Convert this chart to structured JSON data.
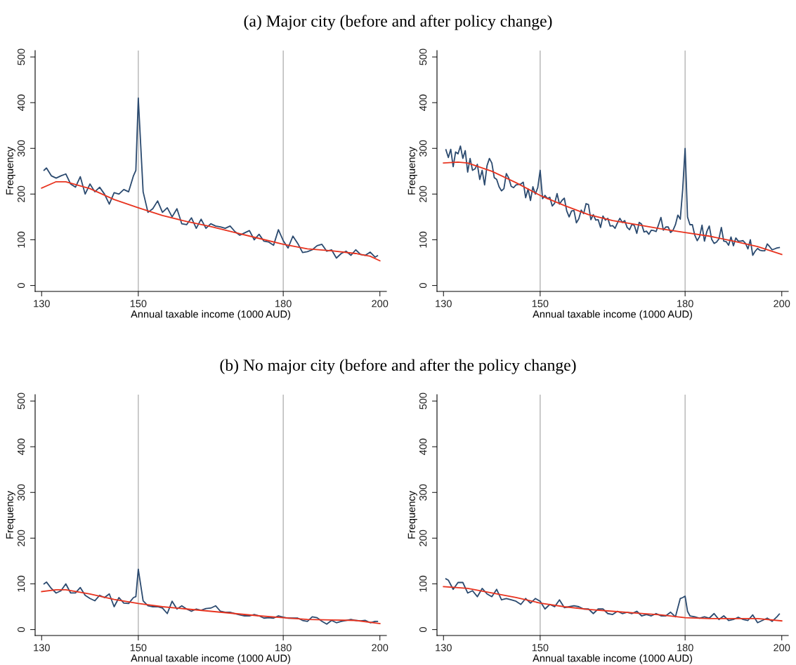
{
  "chart_data": [
    {
      "type": "line",
      "title": "(a) Major city (before and after policy change)",
      "xlabel": "Annual taxable income (1000 AUD)",
      "ylabel": "Frequency",
      "xlim": [
        128.65,
        201.35
      ],
      "ylim": [
        -13,
        514
      ],
      "xticks": [
        130,
        150,
        180,
        200
      ],
      "yticks": [
        0,
        100,
        200,
        300,
        400,
        500
      ],
      "grid": false,
      "marker": "none",
      "line_style": "solid",
      "ref_lines": [
        {
          "axis": "x",
          "value": 150,
          "color": "#b4b4b4"
        },
        {
          "axis": "x",
          "value": 180,
          "color": "#b4b4b4"
        }
      ],
      "series": [
        {
          "color": "#2b4a6f",
          "x": [
            130.5,
            131,
            132,
            133,
            134,
            135,
            136,
            137,
            138,
            139,
            140,
            141,
            142,
            143,
            144,
            145,
            146,
            147,
            148,
            149,
            149.5,
            150,
            151,
            152,
            153,
            154,
            155,
            156,
            157,
            158,
            159,
            160,
            161,
            162,
            163,
            164,
            165,
            166,
            167,
            168,
            169,
            170,
            171,
            172,
            173,
            174,
            175,
            176,
            177,
            178,
            179,
            180,
            181,
            182,
            183,
            184,
            185,
            186,
            187,
            188,
            189,
            190,
            191,
            192,
            193,
            194,
            195,
            196,
            197,
            198,
            199,
            199.5
          ],
          "values": [
            252,
            257,
            240,
            235,
            240,
            244,
            222,
            215,
            238,
            200,
            222,
            205,
            215,
            200,
            178,
            203,
            200,
            210,
            205,
            240,
            252,
            410,
            205,
            160,
            168,
            185,
            160,
            170,
            150,
            168,
            135,
            133,
            148,
            125,
            145,
            125,
            135,
            130,
            128,
            125,
            130,
            118,
            110,
            115,
            120,
            100,
            112,
            97,
            95,
            88,
            122,
            98,
            82,
            108,
            92,
            72,
            74,
            78,
            87,
            90,
            75,
            78,
            60,
            70,
            75,
            66,
            78,
            68,
            66,
            73,
            62,
            65
          ]
        },
        {
          "color": "#e8331f",
          "x": [
            130,
            133,
            135,
            140,
            145,
            150,
            155,
            160,
            165,
            170,
            175,
            180,
            185,
            190,
            195,
            198,
            200
          ],
          "values": [
            213,
            227,
            227,
            212,
            188,
            170,
            153,
            140,
            129,
            116,
            103,
            90,
            80,
            76,
            70,
            64,
            54
          ]
        }
      ]
    },
    {
      "type": "line",
      "xlabel": "Annual taxable income (1000 AUD)",
      "ylabel": "Frequency",
      "xlim": [
        128.65,
        201.35
      ],
      "ylim": [
        -13,
        514
      ],
      "xticks": [
        130,
        150,
        180,
        200
      ],
      "yticks": [
        0,
        100,
        200,
        300,
        400,
        500
      ],
      "grid": false,
      "marker": "none",
      "line_style": "solid",
      "ref_lines": [
        {
          "axis": "x",
          "value": 150,
          "color": "#b4b4b4"
        },
        {
          "axis": "x",
          "value": 180,
          "color": "#b4b4b4"
        }
      ],
      "series": [
        {
          "color": "#2b4a6f",
          "x": [
            130.5,
            131,
            131.5,
            132,
            132.5,
            133,
            133.5,
            134,
            134.5,
            135,
            135.5,
            136,
            136.5,
            137,
            137.5,
            138,
            138.5,
            139,
            139.5,
            140,
            140.5,
            141,
            141.5,
            142,
            142.5,
            143,
            143.5,
            144,
            144.5,
            145,
            145.5,
            146,
            146.5,
            147,
            147.5,
            148,
            148.5,
            149,
            149.5,
            150,
            150.5,
            151,
            151.5,
            152,
            152.5,
            153,
            153.5,
            154,
            154.5,
            155,
            155.5,
            156,
            156.5,
            157,
            157.5,
            158,
            158.5,
            159,
            159.5,
            160,
            160.5,
            161,
            161.5,
            162,
            162.5,
            163,
            163.5,
            164,
            164.5,
            165,
            165.5,
            166,
            166.5,
            167,
            167.5,
            168,
            168.5,
            169,
            169.5,
            170,
            170.5,
            171,
            171.5,
            172,
            172.5,
            173,
            173.5,
            174,
            174.5,
            175,
            175.5,
            176,
            176.5,
            177,
            177.5,
            178,
            178.5,
            179,
            179.5,
            180,
            180.5,
            181,
            181.5,
            182,
            182.5,
            183,
            183.5,
            184,
            184.5,
            185,
            185.5,
            186,
            186.5,
            187,
            187.5,
            188,
            188.5,
            189,
            189.5,
            190,
            190.5,
            191,
            191.5,
            192,
            192.5,
            193,
            193.5,
            194,
            194.5,
            195,
            195.5,
            196,
            196.5,
            197,
            197.5,
            198,
            198.5,
            199,
            199.5
          ],
          "values": [
            297,
            280,
            298,
            260,
            292,
            288,
            305,
            278,
            295,
            248,
            278,
            252,
            255,
            265,
            232,
            252,
            220,
            262,
            278,
            268,
            236,
            232,
            216,
            207,
            212,
            245,
            235,
            217,
            214,
            220,
            221,
            222,
            226,
            192,
            211,
            186,
            216,
            200,
            214,
            252,
            190,
            197,
            190,
            193,
            174,
            180,
            201,
            178,
            186,
            191,
            163,
            150,
            163,
            164,
            137,
            146,
            165,
            157,
            179,
            177,
            144,
            155,
            143,
            144,
            127,
            152,
            143,
            147,
            130,
            131,
            125,
            137,
            147,
            138,
            142,
            127,
            122,
            134,
            131,
            114,
            138,
            134,
            117,
            119,
            112,
            121,
            120,
            118,
            133,
            149,
            121,
            128,
            128,
            116,
            121,
            133,
            154,
            145,
            210,
            300,
            150,
            133,
            133,
            110,
            98,
            107,
            132,
            97,
            118,
            130,
            101,
            92,
            95,
            102,
            127,
            97,
            96,
            88,
            106,
            87,
            104,
            97,
            97,
            98,
            92,
            80,
            100,
            66,
            75,
            81,
            77,
            76,
            76,
            91,
            85,
            78,
            80,
            82,
            83
          ]
        },
        {
          "color": "#e8331f",
          "x": [
            130,
            133,
            135,
            140,
            145,
            150,
            155,
            160,
            165,
            170,
            175,
            180,
            185,
            190,
            195,
            200
          ],
          "values": [
            268,
            270,
            268,
            250,
            225,
            197,
            175,
            155,
            142,
            133,
            124,
            116,
            108,
            97,
            85,
            68
          ]
        }
      ]
    },
    {
      "type": "line",
      "title": "(b) No major city (before and after the policy change)",
      "xlabel": "Annual taxable income (1000 AUD)",
      "ylabel": "Frequency",
      "xlim": [
        128.65,
        201.35
      ],
      "ylim": [
        -13,
        514
      ],
      "xticks": [
        130,
        150,
        180,
        200
      ],
      "yticks": [
        0,
        100,
        200,
        300,
        400,
        500
      ],
      "grid": false,
      "marker": "none",
      "line_style": "solid",
      "ref_lines": [
        {
          "axis": "x",
          "value": 150,
          "color": "#b4b4b4"
        },
        {
          "axis": "x",
          "value": 180,
          "color": "#b4b4b4"
        }
      ],
      "series": [
        {
          "color": "#2b4a6f",
          "x": [
            130.5,
            131,
            132,
            133,
            134,
            135,
            136,
            137,
            138,
            139,
            140,
            141,
            142,
            143,
            144,
            145,
            146,
            147,
            148,
            149,
            149.5,
            150,
            151,
            152,
            153,
            154,
            155,
            156,
            157,
            158,
            159,
            160,
            161,
            162,
            163,
            164,
            165,
            166,
            167,
            168,
            169,
            170,
            171,
            172,
            173,
            174,
            175,
            176,
            177,
            178,
            179,
            180,
            181,
            182,
            183,
            184,
            185,
            186,
            187,
            188,
            189,
            190,
            191,
            192,
            193,
            194,
            195,
            196,
            197,
            198,
            199,
            199.5
          ],
          "values": [
            100,
            104,
            90,
            80,
            85,
            100,
            80,
            80,
            92,
            75,
            68,
            63,
            75,
            70,
            78,
            50,
            70,
            58,
            57,
            70,
            72,
            132,
            63,
            52,
            50,
            50,
            47,
            35,
            62,
            45,
            52,
            45,
            40,
            45,
            42,
            46,
            47,
            52,
            40,
            38,
            38,
            35,
            32,
            30,
            30,
            33,
            30,
            25,
            26,
            25,
            30,
            27,
            25,
            25,
            25,
            20,
            18,
            28,
            26,
            18,
            12,
            20,
            15,
            18,
            20,
            22,
            20,
            19,
            20,
            15,
            18,
            18
          ]
        },
        {
          "color": "#e8331f",
          "x": [
            130,
            133,
            135,
            140,
            145,
            150,
            155,
            160,
            165,
            170,
            175,
            180,
            185,
            190,
            195,
            200
          ],
          "values": [
            83,
            87,
            87,
            78,
            66,
            57,
            50,
            45,
            40,
            35,
            30,
            26,
            22,
            21,
            20,
            13
          ]
        }
      ]
    },
    {
      "type": "line",
      "xlabel": "Annual taxable income (1000 AUD)",
      "ylabel": "Frequency",
      "xlim": [
        128.65,
        201.35
      ],
      "ylim": [
        -13,
        514
      ],
      "xticks": [
        130,
        150,
        180,
        200
      ],
      "yticks": [
        0,
        100,
        200,
        300,
        400,
        500
      ],
      "grid": false,
      "marker": "none",
      "line_style": "solid",
      "ref_lines": [
        {
          "axis": "x",
          "value": 150,
          "color": "#b4b4b4"
        },
        {
          "axis": "x",
          "value": 180,
          "color": "#b4b4b4"
        }
      ],
      "series": [
        {
          "color": "#2b4a6f",
          "x": [
            130.5,
            131,
            132,
            133,
            134,
            135,
            136,
            137,
            138,
            139,
            140,
            141,
            142,
            143,
            144,
            145,
            146,
            147,
            148,
            149,
            150,
            151,
            152,
            153,
            154,
            155,
            156,
            157,
            158,
            159,
            160,
            161,
            162,
            163,
            164,
            165,
            166,
            167,
            168,
            169,
            170,
            171,
            172,
            173,
            174,
            175,
            176,
            177,
            178,
            179,
            179.5,
            180,
            180.5,
            181,
            182,
            183,
            184,
            185,
            186,
            187,
            188,
            189,
            190,
            191,
            192,
            193,
            194,
            195,
            196,
            197,
            198,
            199,
            199.5
          ],
          "values": [
            111,
            108,
            88,
            103,
            103,
            80,
            85,
            72,
            90,
            78,
            72,
            88,
            65,
            68,
            65,
            62,
            55,
            68,
            58,
            68,
            62,
            45,
            55,
            50,
            65,
            48,
            50,
            52,
            50,
            45,
            45,
            35,
            45,
            45,
            35,
            33,
            40,
            35,
            38,
            35,
            40,
            30,
            33,
            30,
            35,
            30,
            30,
            38,
            28,
            68,
            70,
            73,
            40,
            30,
            28,
            25,
            28,
            25,
            35,
            22,
            30,
            20,
            22,
            27,
            22,
            20,
            32,
            15,
            20,
            25,
            18,
            28,
            34
          ]
        },
        {
          "color": "#e8331f",
          "x": [
            130,
            135,
            140,
            145,
            150,
            155,
            160,
            165,
            170,
            175,
            180,
            185,
            190,
            195,
            200
          ],
          "values": [
            94,
            90,
            80,
            70,
            58,
            50,
            44,
            40,
            36,
            32,
            26,
            24,
            24,
            24,
            19
          ]
        }
      ]
    }
  ]
}
